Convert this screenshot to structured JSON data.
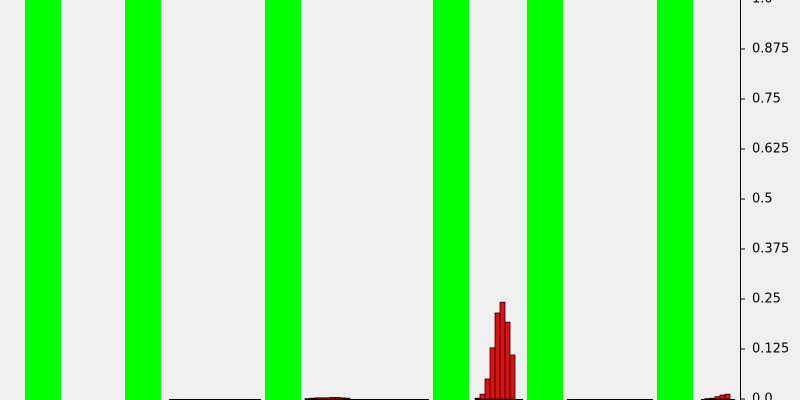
{
  "chart_data": {
    "type": "bar",
    "ylim": [
      0,
      1
    ],
    "y_axis_position": "right",
    "grid": false,
    "y_ticks": [
      {
        "value": 0.0,
        "label": "0.0"
      },
      {
        "value": 0.125,
        "label": "0.125"
      },
      {
        "value": 0.25,
        "label": "0.25"
      },
      {
        "value": 0.375,
        "label": "0.375"
      },
      {
        "value": 0.5,
        "label": "0.5"
      },
      {
        "value": 0.625,
        "label": "0.625"
      },
      {
        "value": 0.75,
        "label": "0.75"
      },
      {
        "value": 0.875,
        "label": "0.875"
      },
      {
        "value": 1.0,
        "label": "1.0"
      }
    ],
    "colors": {
      "background": "#efefef",
      "band": "#00ff00",
      "bar_fill": "#dd1111",
      "bar_stroke": "#220000",
      "axis": "#000000"
    },
    "bands": [
      {
        "x": [
          0.5,
          1.4
        ]
      },
      {
        "x": [
          3.0,
          3.9
        ]
      },
      {
        "x": [
          6.5,
          7.4
        ]
      },
      {
        "x": [
          10.7,
          11.6
        ]
      },
      {
        "x": [
          13.05,
          13.95
        ]
      },
      {
        "x": [
          16.3,
          17.2
        ]
      }
    ],
    "bins": [
      {
        "x": [
          7.5,
          7.625
        ],
        "value": 0.001
      },
      {
        "x": [
          7.625,
          7.75
        ],
        "value": 0.002
      },
      {
        "x": [
          7.75,
          7.875
        ],
        "value": 0.003
      },
      {
        "x": [
          7.875,
          8.0
        ],
        "value": 0.003
      },
      {
        "x": [
          8.0,
          8.125
        ],
        "value": 0.003
      },
      {
        "x": [
          8.125,
          8.25
        ],
        "value": 0.004
      },
      {
        "x": [
          8.25,
          8.375
        ],
        "value": 0.004
      },
      {
        "x": [
          8.375,
          8.5
        ],
        "value": 0.003
      },
      {
        "x": [
          8.5,
          8.625
        ],
        "value": 0.002
      },
      {
        "x": [
          11.75,
          11.875
        ],
        "value": 0.002
      },
      {
        "x": [
          11.875,
          12.0
        ],
        "value": 0.012
      },
      {
        "x": [
          12.0,
          12.125
        ],
        "value": 0.05
      },
      {
        "x": [
          12.125,
          12.25
        ],
        "value": 0.128
      },
      {
        "x": [
          12.25,
          12.375
        ],
        "value": 0.215
      },
      {
        "x": [
          12.375,
          12.5
        ],
        "value": 0.242
      },
      {
        "x": [
          12.5,
          12.625
        ],
        "value": 0.192
      },
      {
        "x": [
          12.625,
          12.75
        ],
        "value": 0.11
      },
      {
        "x": [
          17.5,
          17.625
        ],
        "value": 0.001
      },
      {
        "x": [
          17.625,
          17.75
        ],
        "value": 0.002
      },
      {
        "x": [
          17.75,
          17.875
        ],
        "value": 0.006
      },
      {
        "x": [
          17.875,
          18.0
        ],
        "value": 0.01
      },
      {
        "x": [
          18.0,
          18.125
        ],
        "value": 0.012
      }
    ],
    "baselines": [
      {
        "x": [
          4.1,
          6.4
        ]
      },
      {
        "x": [
          7.5,
          10.6
        ]
      },
      {
        "x": [
          11.75,
          12.95
        ]
      },
      {
        "x": [
          14.05,
          16.2
        ]
      },
      {
        "x": [
          17.4,
          18.25
        ]
      }
    ]
  }
}
